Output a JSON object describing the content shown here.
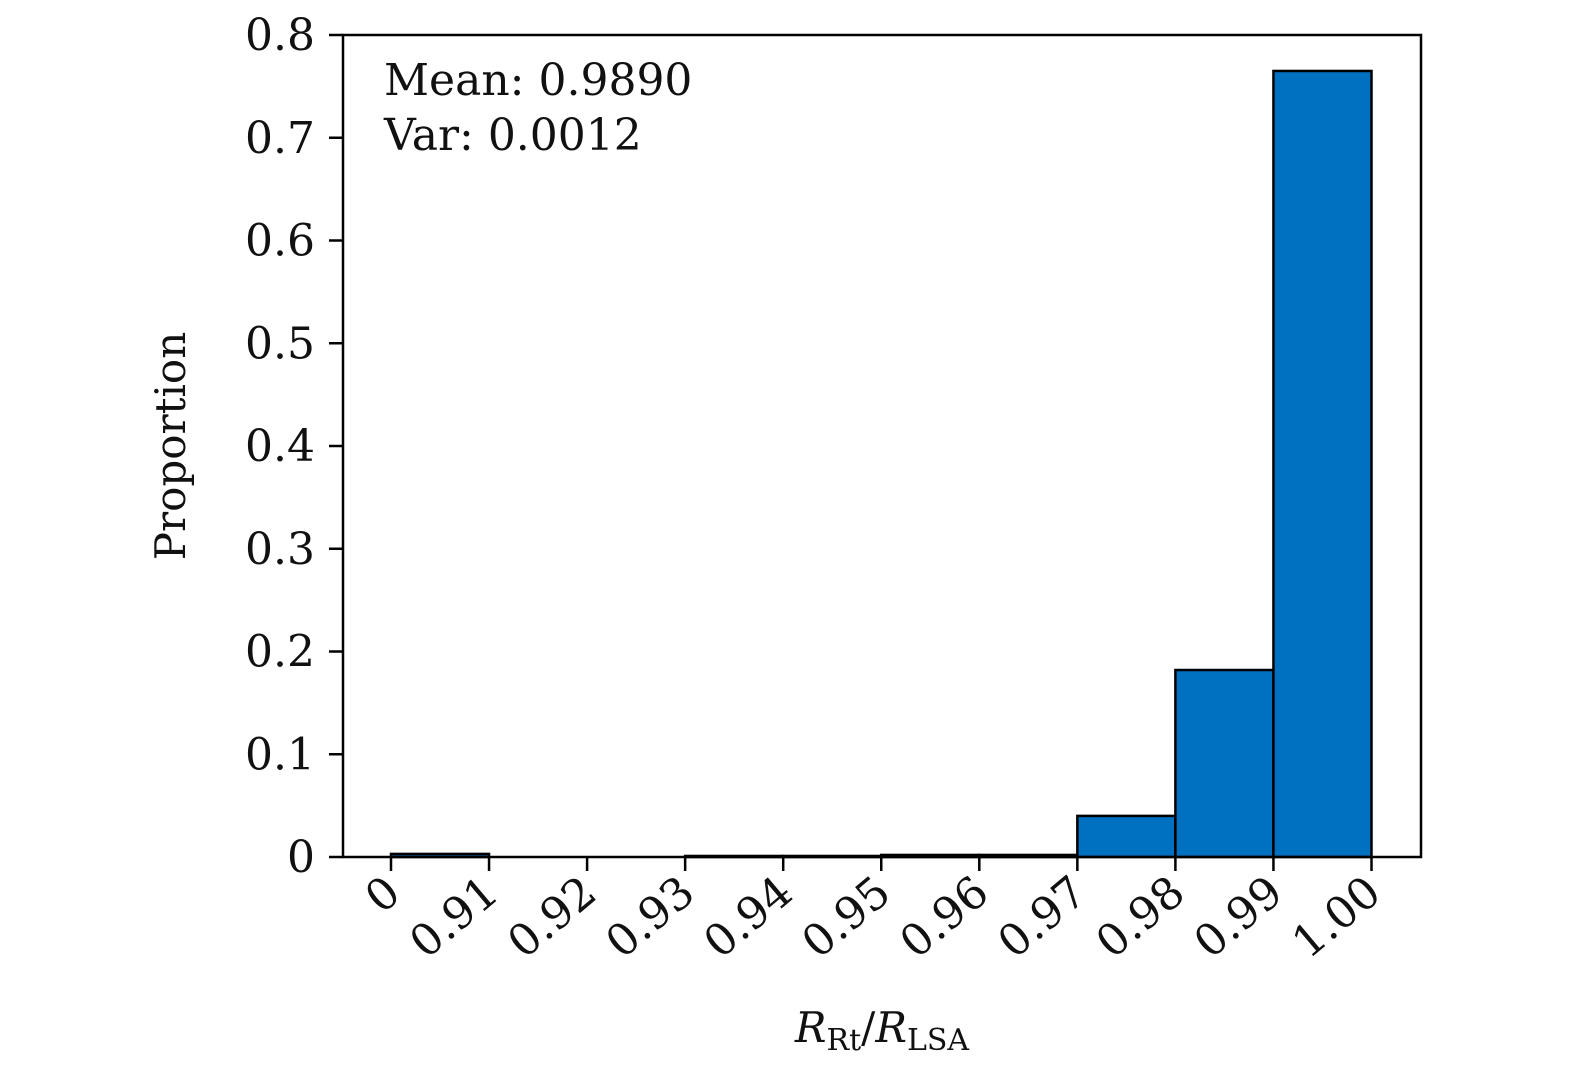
{
  "chart_data": {
    "type": "bar",
    "categories": [
      "0",
      "0.91",
      "0.92",
      "0.93",
      "0.94",
      "0.95",
      "0.96",
      "0.97",
      "0.98",
      "0.99",
      "1.00"
    ],
    "bins": [
      {
        "from": "0",
        "to": "0.91",
        "value": 0.003
      },
      {
        "from": "0.91",
        "to": "0.92",
        "value": 0.0
      },
      {
        "from": "0.92",
        "to": "0.93",
        "value": 0.0
      },
      {
        "from": "0.93",
        "to": "0.94",
        "value": 0.001
      },
      {
        "from": "0.94",
        "to": "0.95",
        "value": 0.001
      },
      {
        "from": "0.95",
        "to": "0.96",
        "value": 0.002
      },
      {
        "from": "0.96",
        "to": "0.97",
        "value": 0.002
      },
      {
        "from": "0.97",
        "to": "0.98",
        "value": 0.04
      },
      {
        "from": "0.98",
        "to": "0.99",
        "value": 0.182
      },
      {
        "from": "0.99",
        "to": "1.00",
        "value": 0.765
      }
    ],
    "ylabel": "Proportion",
    "xlabel": {
      "main1": "R",
      "sub1": "Rt",
      "sep": "/",
      "main2": "R",
      "sub2": "LSA"
    },
    "ylim": [
      0,
      0.8
    ],
    "yticks": [
      "0",
      "0.1",
      "0.2",
      "0.3",
      "0.4",
      "0.5",
      "0.6",
      "0.7",
      "0.8"
    ],
    "annotations": [
      "Mean: 0.9890",
      "Var: 0.0012"
    ],
    "bar_color": "#0070c0",
    "edge_color": "#000000",
    "grid": false
  }
}
